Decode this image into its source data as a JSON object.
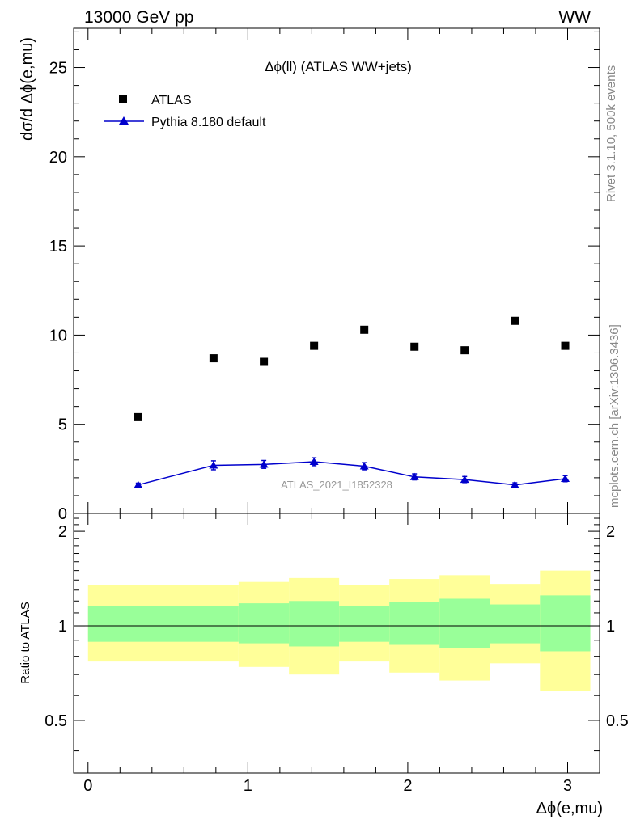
{
  "header": {
    "energy_label": "13000 GeV pp",
    "process_label": "WW"
  },
  "side_labels": {
    "rivet": "Rivet 3.1.10,  500k events",
    "source": "mcplots.cern.ch [arXiv:1306.3436]"
  },
  "chart_data": [
    {
      "type": "scatter",
      "title": "Δϕ(ll) (ATLAS WW+jets)",
      "ylabel": "dσ/d Δϕ(e,mu)",
      "xlabel": "Δϕ(e,mu)",
      "xlim": [
        -0.09,
        3.2
      ],
      "ylim": [
        0,
        27.2
      ],
      "y_ticks": [
        0,
        5,
        10,
        15,
        20,
        25
      ],
      "legend_position": "top-left",
      "watermark": "ATLAS_2021_I1852328",
      "series": [
        {
          "name": "ATLAS",
          "marker": "square",
          "color": "#000000",
          "x": [
            0.314,
            0.785,
            1.1,
            1.414,
            1.728,
            2.042,
            2.356,
            2.67,
            2.985
          ],
          "y": [
            5.4,
            8.7,
            8.5,
            9.4,
            10.3,
            9.35,
            9.15,
            10.8,
            9.4
          ]
        },
        {
          "name": "Pythia 8.180 default",
          "marker": "triangle",
          "color": "#0000cc",
          "x": [
            0.314,
            0.785,
            1.1,
            1.414,
            1.728,
            2.042,
            2.356,
            2.67,
            2.985
          ],
          "y": [
            1.6,
            2.7,
            2.75,
            2.9,
            2.65,
            2.05,
            1.9,
            1.6,
            1.95
          ],
          "yerr": [
            0.1,
            0.25,
            0.22,
            0.22,
            0.2,
            0.17,
            0.17,
            0.12,
            0.17
          ]
        }
      ]
    },
    {
      "type": "area",
      "ylabel": "Ratio to ATLAS",
      "xlabel": "Δϕ(e,mu)",
      "xlim": [
        -0.09,
        3.2
      ],
      "ylim": [
        0.34,
        2.28
      ],
      "y_ticks": [
        0.5,
        1,
        2
      ],
      "x_ticks": [
        0,
        1,
        2,
        3
      ],
      "reference_line": 1,
      "bands": [
        {
          "x0": 0,
          "x1": 0.942,
          "yellow": [
            0.77,
            1.35
          ],
          "green": [
            0.89,
            1.16
          ]
        },
        {
          "x0": 0.942,
          "x1": 1.257,
          "yellow": [
            0.74,
            1.38
          ],
          "green": [
            0.88,
            1.18
          ]
        },
        {
          "x0": 1.257,
          "x1": 1.571,
          "yellow": [
            0.7,
            1.42
          ],
          "green": [
            0.86,
            1.2
          ]
        },
        {
          "x0": 1.571,
          "x1": 1.885,
          "yellow": [
            0.77,
            1.35
          ],
          "green": [
            0.89,
            1.16
          ]
        },
        {
          "x0": 1.885,
          "x1": 2.199,
          "yellow": [
            0.71,
            1.41
          ],
          "green": [
            0.87,
            1.19
          ]
        },
        {
          "x0": 2.199,
          "x1": 2.513,
          "yellow": [
            0.67,
            1.45
          ],
          "green": [
            0.85,
            1.22
          ]
        },
        {
          "x0": 2.513,
          "x1": 2.827,
          "yellow": [
            0.76,
            1.36
          ],
          "green": [
            0.88,
            1.17
          ]
        },
        {
          "x0": 2.827,
          "x1": 3.142,
          "yellow": [
            0.62,
            1.5
          ],
          "green": [
            0.83,
            1.25
          ]
        }
      ],
      "colors": {
        "yellow": "#ffff99",
        "green": "#99ff99"
      }
    }
  ]
}
